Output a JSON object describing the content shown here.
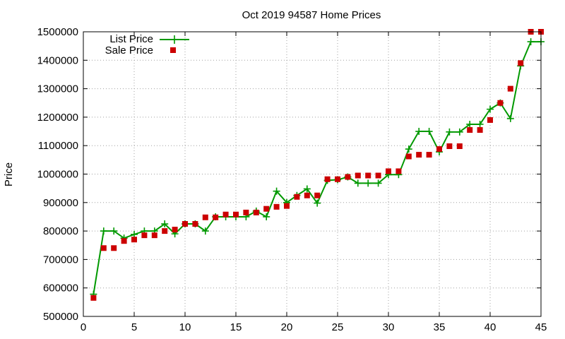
{
  "chart_data": {
    "type": "line",
    "title": "Oct 2019 94587 Home Prices",
    "xlabel": "",
    "ylabel": "Price",
    "xlim": [
      0,
      45
    ],
    "ylim": [
      500000,
      1500000
    ],
    "x_ticks": [
      0,
      5,
      10,
      15,
      20,
      25,
      30,
      35,
      40,
      45
    ],
    "y_ticks": [
      500000,
      600000,
      700000,
      800000,
      900000,
      1000000,
      1100000,
      1200000,
      1300000,
      1400000,
      1500000
    ],
    "grid": true,
    "legend_position": "top-left",
    "series": [
      {
        "name": "List Price",
        "style": "line-with-plus-markers",
        "color": "#009900",
        "x": [
          1,
          2,
          3,
          4,
          5,
          6,
          7,
          8,
          9,
          10,
          11,
          12,
          13,
          14,
          15,
          16,
          17,
          18,
          19,
          20,
          21,
          22,
          23,
          24,
          25,
          26,
          27,
          28,
          29,
          30,
          31,
          32,
          33,
          34,
          35,
          36,
          37,
          38,
          39,
          40,
          41,
          42,
          43,
          44,
          45
        ],
        "values": [
          578000,
          800000,
          800000,
          775000,
          788000,
          800000,
          800000,
          825000,
          790000,
          825000,
          825000,
          800000,
          850000,
          850000,
          850000,
          850000,
          870000,
          850000,
          940000,
          900000,
          925000,
          948000,
          898000,
          978000,
          980000,
          990000,
          968000,
          968000,
          968000,
          998000,
          998000,
          1088000,
          1150000,
          1150000,
          1078000,
          1148000,
          1148000,
          1175000,
          1175000,
          1228000,
          1250000,
          1195000,
          1380000,
          1465000,
          1465000
        ]
      },
      {
        "name": "Sale Price",
        "style": "square-markers",
        "color": "#cc0000",
        "x": [
          1,
          2,
          3,
          4,
          5,
          6,
          7,
          8,
          9,
          10,
          11,
          12,
          13,
          14,
          15,
          16,
          17,
          18,
          19,
          20,
          21,
          22,
          23,
          24,
          25,
          26,
          27,
          28,
          29,
          30,
          31,
          32,
          33,
          34,
          35,
          36,
          37,
          38,
          39,
          40,
          41,
          42,
          43,
          44,
          45
        ],
        "values": [
          565000,
          740000,
          740000,
          765000,
          770000,
          785000,
          785000,
          800000,
          805000,
          825000,
          825000,
          848000,
          848000,
          858000,
          858000,
          865000,
          865000,
          878000,
          885000,
          888000,
          920000,
          925000,
          925000,
          982000,
          982000,
          990000,
          995000,
          995000,
          995000,
          1010000,
          1010000,
          1062000,
          1068000,
          1068000,
          1088000,
          1098000,
          1098000,
          1155000,
          1155000,
          1190000,
          1250000,
          1300000,
          1390000,
          1500000,
          1500000
        ]
      }
    ]
  }
}
